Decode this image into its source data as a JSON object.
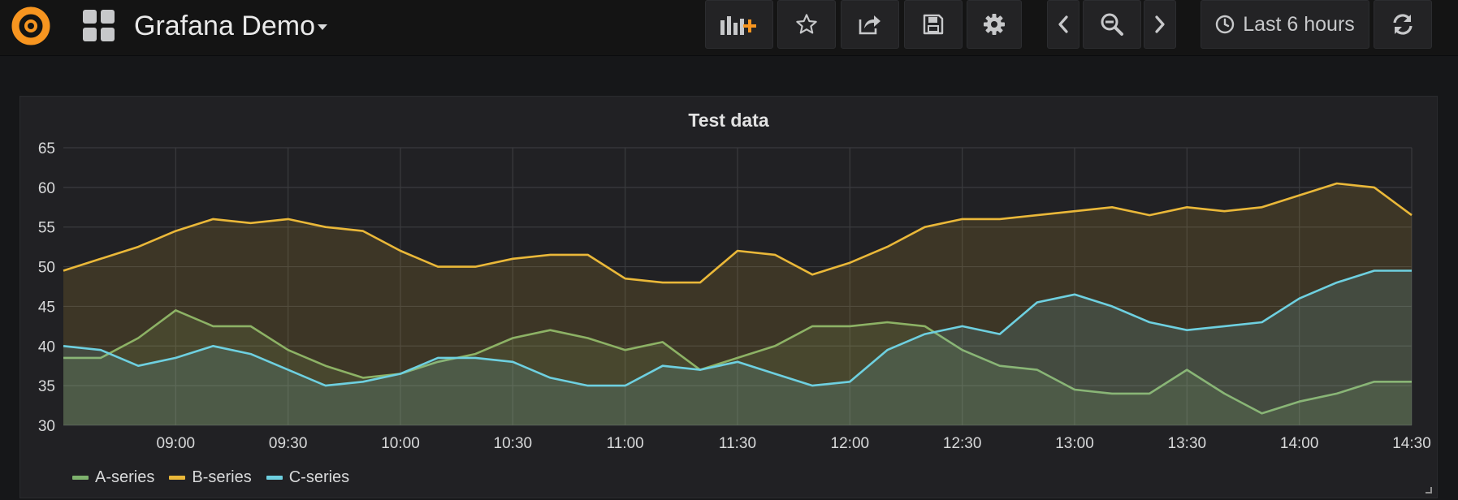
{
  "header": {
    "title": "Grafana Demo",
    "time_range_label": "Last 6 hours"
  },
  "icons": {
    "logo": "grafana-logo-icon",
    "apps": "apps-grid-icon",
    "add_panel": "add-panel-icon",
    "star": "star-icon",
    "share": "share-icon",
    "save": "save-icon",
    "settings": "gear-icon",
    "back": "chevron-left-icon",
    "zoom_out": "zoom-out-icon",
    "forward": "chevron-right-icon",
    "clock": "clock-icon",
    "refresh": "refresh-icon"
  },
  "colors": {
    "accent": "#f79520",
    "A-series": "#7eb26d",
    "B-series": "#eab839",
    "C-series": "#6ed0e0"
  },
  "chart_data": {
    "type": "area",
    "title": "Test data",
    "xlabel": "",
    "ylabel": "",
    "x_ticks": [
      "09:00",
      "09:30",
      "10:00",
      "10:30",
      "11:00",
      "11:30",
      "12:00",
      "12:30",
      "13:00",
      "13:30",
      "14:00",
      "14:30"
    ],
    "y_ticks": [
      30,
      35,
      40,
      45,
      50,
      55,
      60,
      65
    ],
    "ylim": [
      30,
      65
    ],
    "x_range": [
      "08:30",
      "14:30"
    ],
    "grid": true,
    "legend_position": "bottom-left",
    "x": [
      "08:30",
      "08:40",
      "08:50",
      "09:00",
      "09:10",
      "09:20",
      "09:30",
      "09:40",
      "09:50",
      "10:00",
      "10:10",
      "10:20",
      "10:30",
      "10:40",
      "10:50",
      "11:00",
      "11:10",
      "11:20",
      "11:30",
      "11:40",
      "11:50",
      "12:00",
      "12:10",
      "12:20",
      "12:30",
      "12:40",
      "12:50",
      "13:00",
      "13:10",
      "13:20",
      "13:30",
      "13:40",
      "13:50",
      "14:00",
      "14:10",
      "14:20",
      "14:30"
    ],
    "series": [
      {
        "name": "A-series",
        "color": "#7eb26d",
        "values": [
          38.5,
          38.5,
          41,
          44.5,
          42.5,
          42.5,
          39.5,
          37.5,
          36,
          36.5,
          38,
          39,
          41,
          42,
          41,
          39.5,
          40.5,
          37,
          38.5,
          40,
          42.5,
          42.5,
          43,
          42.5,
          39.5,
          37.5,
          37,
          34.5,
          34,
          34,
          37,
          34,
          31.5,
          33,
          34,
          35.5,
          35.5
        ]
      },
      {
        "name": "B-series",
        "color": "#eab839",
        "values": [
          49.5,
          51,
          52.5,
          54.5,
          56,
          55.5,
          56,
          55,
          54.5,
          52,
          50,
          50,
          51,
          51.5,
          51.5,
          48.5,
          48,
          48,
          52,
          51.5,
          49,
          50.5,
          52.5,
          55,
          56,
          56,
          56.5,
          57,
          57.5,
          56.5,
          57.5,
          57,
          57.5,
          59,
          60.5,
          60,
          56.5
        ]
      },
      {
        "name": "C-series",
        "color": "#6ed0e0",
        "values": [
          40,
          39.5,
          37.5,
          38.5,
          40,
          39,
          37,
          35,
          35.5,
          36.5,
          38.5,
          38.5,
          38,
          36,
          35,
          35,
          37.5,
          37,
          38,
          36.5,
          35,
          35.5,
          39.5,
          41.5,
          42.5,
          41.5,
          45.5,
          46.5,
          45,
          43,
          42,
          42.5,
          43,
          46,
          48,
          49.5,
          49.5
        ]
      }
    ]
  }
}
